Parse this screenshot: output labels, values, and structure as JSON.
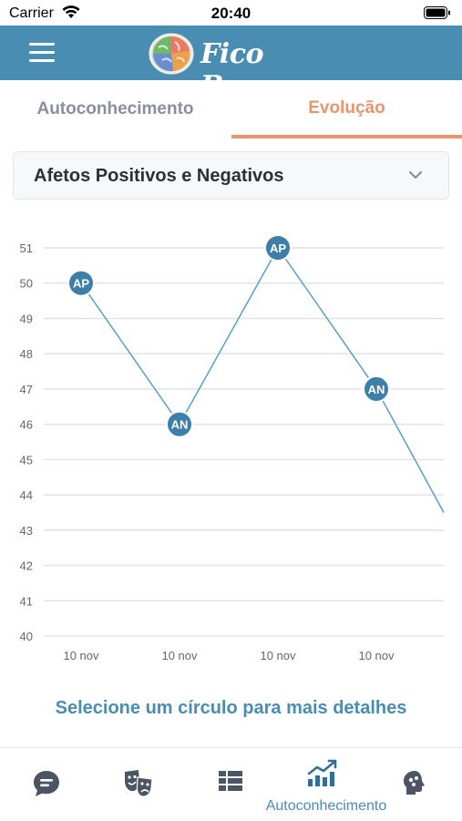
{
  "status": {
    "carrier": "Carrier",
    "time": "20:40"
  },
  "header": {
    "logo_text": "Fico Bem"
  },
  "tabs": [
    {
      "label": "Autoconhecimento",
      "active": false
    },
    {
      "label": "Evolução",
      "active": true
    }
  ],
  "dropdown": {
    "selected": "Afetos Positivos e Negativos"
  },
  "chart_data": {
    "type": "line",
    "ylim": [
      40,
      51
    ],
    "yticks": [
      40,
      41,
      42,
      43,
      44,
      45,
      46,
      47,
      48,
      49,
      50,
      51
    ],
    "categories": [
      "10 nov",
      "10 nov",
      "10 nov",
      "10 nov"
    ],
    "points": [
      {
        "label": "AP",
        "y": 50
      },
      {
        "label": "AN",
        "y": 46
      },
      {
        "label": "AP",
        "y": 51
      },
      {
        "label": "AN",
        "y": 47
      }
    ],
    "trailing_y": 43.5,
    "grid": true,
    "colors": {
      "line": "#5a9ec4",
      "marker": "#3d7fa8",
      "grid": "#e3e3e3",
      "tick": "#666666"
    }
  },
  "hint": "Selecione um círculo para mais detalhes",
  "bottom_nav": [
    {
      "icon": "chat-bubble-icon",
      "label": "",
      "active": false
    },
    {
      "icon": "theater-masks-icon",
      "label": "",
      "active": false
    },
    {
      "icon": "list-grid-icon",
      "label": "",
      "active": false
    },
    {
      "icon": "trend-chart-icon",
      "label": "Autoconhecimento",
      "active": true
    },
    {
      "icon": "brain-head-icon",
      "label": "",
      "active": false
    }
  ],
  "colors": {
    "primary": "#4a8db3",
    "accent": "#e8956b"
  }
}
